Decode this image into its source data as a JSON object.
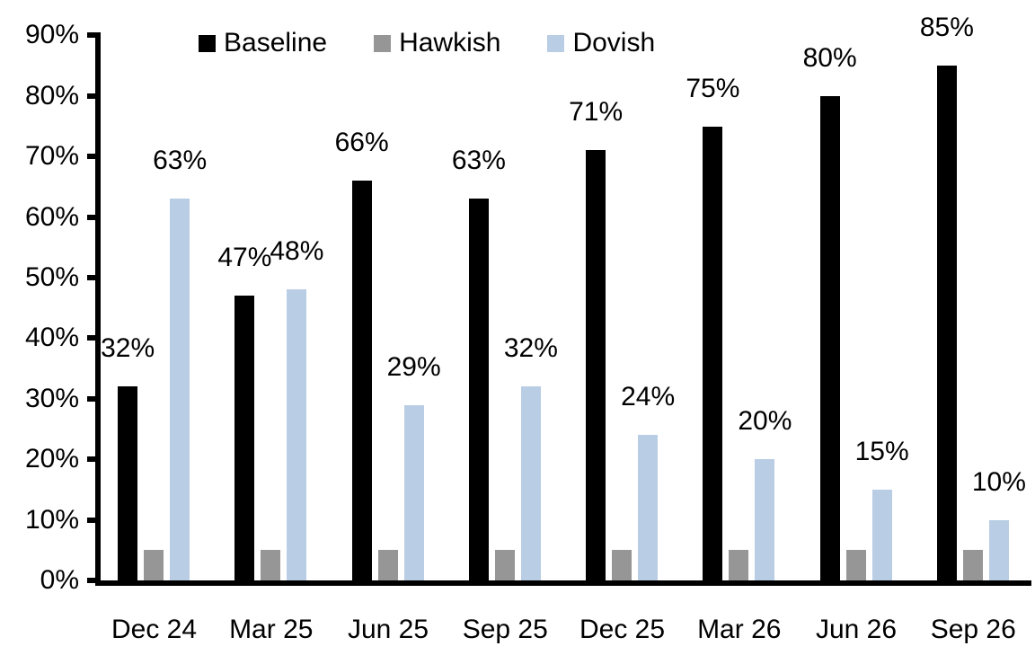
{
  "chart_data": {
    "type": "bar",
    "title": "",
    "categories": [
      "Dec 24",
      "Mar 25",
      "Jun 25",
      "Sep 25",
      "Dec 25",
      "Mar 26",
      "Jun 26",
      "Sep 26"
    ],
    "series": [
      {
        "name": "Baseline",
        "color": "#000000",
        "values": [
          32,
          47,
          66,
          63,
          71,
          75,
          80,
          85
        ],
        "data_labels": [
          "32%",
          "47%",
          "66%",
          "63%",
          "71%",
          "75%",
          "80%",
          "85%"
        ]
      },
      {
        "name": "Hawkish",
        "color": "#969696",
        "values": [
          5,
          5,
          5,
          5,
          5,
          5,
          5,
          5
        ],
        "data_labels": []
      },
      {
        "name": "Dovish",
        "color": "#B9CDE5",
        "values": [
          63,
          48,
          29,
          32,
          24,
          20,
          15,
          10
        ],
        "data_labels": [
          "63%",
          "48%",
          "29%",
          "32%",
          "24%",
          "20%",
          "15%",
          "10%"
        ]
      }
    ],
    "ylim": [
      0,
      90
    ],
    "yticks": {
      "values": [
        0,
        10,
        20,
        30,
        40,
        50,
        60,
        70,
        80,
        90
      ],
      "labels": [
        "0%",
        "10%",
        "20%",
        "30%",
        "40%",
        "50%",
        "60%",
        "70%",
        "80%",
        "90%"
      ]
    },
    "legend": {
      "position": "top",
      "entries": [
        "Baseline",
        "Hawkish",
        "Dovish"
      ]
    },
    "grid": false,
    "axis_color": "#000000"
  }
}
